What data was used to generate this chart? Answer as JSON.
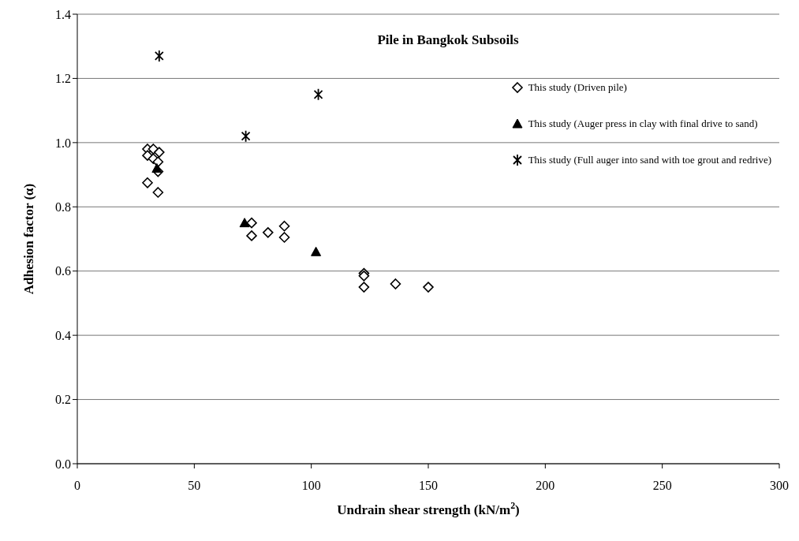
{
  "chart_data": {
    "type": "scatter",
    "title": "Pile in Bangkok Subsoils",
    "xlabel": "Undrain shear strength (kN/m$^{2}$)",
    "ylabel": "Adhesion factor (α)",
    "xlim": [
      0,
      300
    ],
    "xticks": [
      0,
      50,
      100,
      150,
      200,
      250,
      300
    ],
    "ylim": [
      0,
      1.4
    ],
    "yticks": [
      {
        "value": 0,
        "label": "0.0"
      },
      {
        "value": 0.2,
        "label": "0.2"
      },
      {
        "value": 0.4,
        "label": "0.4"
      },
      {
        "value": 0.6,
        "label": "0.6"
      },
      {
        "value": 0.8,
        "label": "0.8"
      },
      {
        "value": 1,
        "label": "1.0"
      },
      {
        "value": 1.2,
        "label": "1.2"
      },
      {
        "value": 1.4,
        "label": "1.4"
      }
    ],
    "grid": "y",
    "legend": "top right",
    "series": [
      {
        "name": "This study (Driven pile)",
        "color": "#000000",
        "marker": "diamond",
        "x": [
          30,
          32.5,
          35,
          30,
          32.5,
          34.5,
          34.5,
          30,
          34.5,
          74.5,
          74.5,
          81.5,
          88.5,
          88.5,
          122.5,
          122.5,
          122.5,
          136,
          150
        ],
        "values": [
          0.98,
          0.98,
          0.97,
          0.96,
          0.95,
          0.94,
          0.91,
          0.875,
          0.845,
          0.75,
          0.71,
          0.72,
          0.74,
          0.705,
          0.593,
          0.585,
          0.55,
          0.56,
          0.55
        ]
      },
      {
        "name": "This study (Auger press in clay with final drive to sand)",
        "color": "#000000",
        "marker": "triangle",
        "x": [
          34,
          71.5,
          102
        ],
        "values": [
          0.92,
          0.75,
          0.66
        ]
      },
      {
        "name": "This study (Full auger into sand with toe grout and redrive)",
        "color": "#000000",
        "marker": "cross",
        "x": [
          35,
          103,
          72
        ],
        "values": [
          1.27,
          1.15,
          1.02
        ]
      }
    ]
  }
}
